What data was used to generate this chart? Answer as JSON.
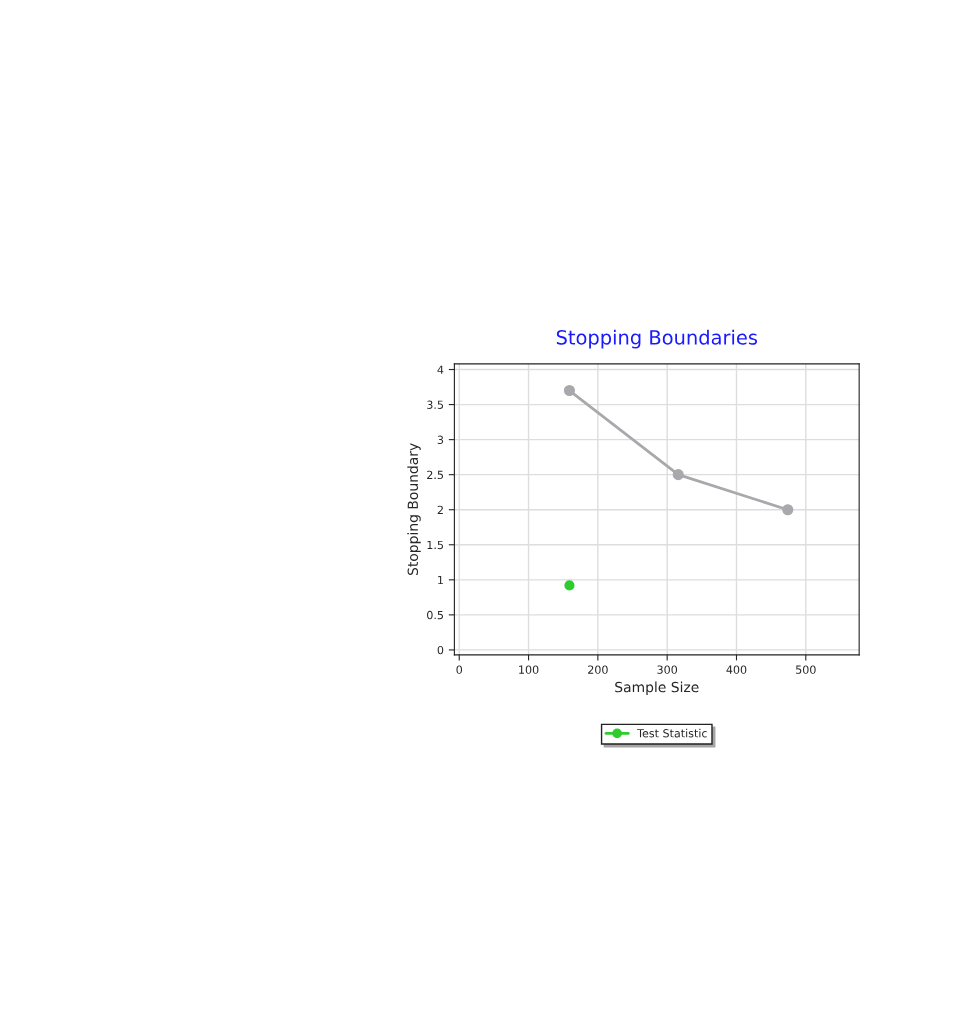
{
  "chart_data": {
    "type": "line",
    "title": "Stopping Boundaries",
    "xlabel": "Sample Size",
    "ylabel": "Stopping Boundary",
    "xlim": [
      -7,
      577
    ],
    "xticks": [
      0,
      100,
      200,
      300,
      400,
      500
    ],
    "ylim": [
      -0.07,
      4.08
    ],
    "yticks": [
      0,
      0.5,
      1,
      1.5,
      2,
      2.5,
      3,
      3.5,
      4
    ],
    "series": [
      {
        "color": "#a9a9ad",
        "x": [
          159,
          316,
          474
        ],
        "values": [
          3.7,
          2.5,
          2.0
        ]
      },
      {
        "type": "scatter",
        "name": "Test Statistic",
        "color": "#2ecc2e",
        "x": [
          159
        ],
        "values": [
          0.92
        ]
      }
    ],
    "grid": true,
    "legend": "bottom",
    "marker": "circle",
    "line_style": "solid"
  }
}
